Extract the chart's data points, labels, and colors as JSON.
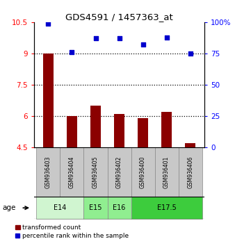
{
  "title": "GDS4591 / 1457363_at",
  "samples": [
    "GSM936403",
    "GSM936404",
    "GSM936405",
    "GSM936402",
    "GSM936400",
    "GSM936401",
    "GSM936406"
  ],
  "bar_values": [
    9.0,
    6.0,
    6.5,
    6.1,
    5.9,
    6.2,
    4.7
  ],
  "scatter_values": [
    99,
    76,
    87,
    87,
    82,
    88,
    75
  ],
  "ylim_left": [
    4.5,
    10.5
  ],
  "ylim_right": [
    0,
    100
  ],
  "yticks_left": [
    4.5,
    6.0,
    7.5,
    9.0,
    10.5
  ],
  "ytick_labels_left": [
    "4.5",
    "6",
    "7.5",
    "9",
    "10.5"
  ],
  "yticks_right": [
    0,
    25,
    50,
    75,
    100
  ],
  "ytick_labels_right": [
    "0",
    "25",
    "50",
    "75",
    "100%"
  ],
  "bar_color": "#8B0000",
  "scatter_color": "#0000CD",
  "dotted_yticks": [
    6.0,
    7.5,
    9.0
  ],
  "age_groups": [
    {
      "label": "E14",
      "spans": [
        0,
        1
      ],
      "color": "#d0f0d0"
    },
    {
      "label": "E15",
      "spans": [
        2
      ],
      "color": "#90EE90"
    },
    {
      "label": "E16",
      "spans": [
        3
      ],
      "color": "#90EE90"
    },
    {
      "label": "E17.5",
      "spans": [
        4,
        5,
        6
      ],
      "color": "#3dcc3d"
    }
  ],
  "legend_bar_label": "transformed count",
  "legend_scatter_label": "percentile rank within the sample",
  "age_label": "age"
}
